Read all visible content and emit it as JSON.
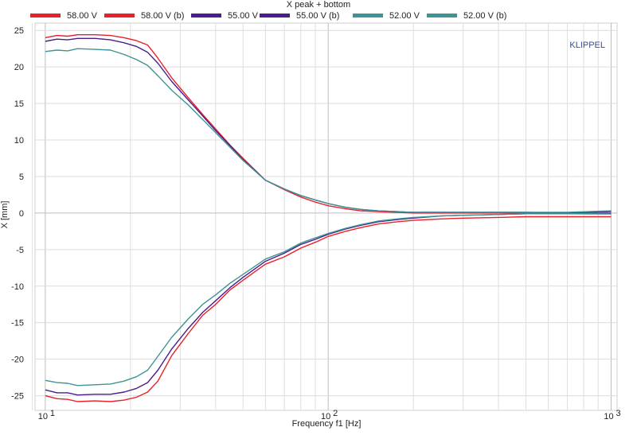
{
  "chart_data": {
    "type": "line",
    "title": "X  peak + bottom",
    "xlabel": "Frequency f1  [Hz]",
    "ylabel": "X  [mm]",
    "watermark": "KLIPPEL",
    "x_scale": "log",
    "xlim": [
      9.2,
      1050
    ],
    "ylim": [
      -27,
      26
    ],
    "grid": true,
    "legend_position": "top",
    "y_ticks": [
      "25",
      "20",
      "15",
      "10",
      "5",
      "0",
      "-5",
      "-10",
      "-15",
      "-20",
      "-25"
    ],
    "x_ticks": [
      {
        "value": 10,
        "base": "10",
        "exp": "1"
      },
      {
        "value": 100,
        "base": "10",
        "exp": "2"
      },
      {
        "value": 1000,
        "base": "10",
        "exp": "3"
      }
    ],
    "series": [
      {
        "name": "58.00 V",
        "color": "#e8202a",
        "x": [
          10,
          11,
          12,
          13,
          15,
          17,
          19,
          21,
          23,
          25,
          28,
          32,
          36,
          40,
          45,
          50,
          60,
          70,
          80,
          90,
          100,
          115,
          130,
          150,
          175,
          200,
          250,
          300,
          400,
          500,
          700,
          1000
        ],
        "y": [
          24.0,
          24.3,
          24.2,
          24.4,
          24.4,
          24.3,
          24.0,
          23.6,
          23.0,
          21.2,
          18.5,
          15.8,
          13.5,
          11.5,
          9.3,
          7.5,
          4.5,
          3.2,
          2.2,
          1.5,
          1.0,
          0.6,
          0.3,
          0.2,
          0.1,
          0.0,
          0.0,
          0.0,
          0.0,
          0.0,
          0.0,
          0.0
        ]
      },
      {
        "name": "58.00 V (b)",
        "color": "#e8202a",
        "x": [
          10,
          11,
          12,
          13,
          15,
          17,
          19,
          21,
          23,
          25,
          28,
          32,
          36,
          40,
          45,
          50,
          60,
          70,
          80,
          90,
          100,
          115,
          130,
          150,
          175,
          200,
          250,
          300,
          400,
          500,
          700,
          1000
        ],
        "y": [
          -25.0,
          -25.4,
          -25.5,
          -25.8,
          -25.7,
          -25.8,
          -25.6,
          -25.2,
          -24.5,
          -23.0,
          -19.5,
          -16.5,
          -14.0,
          -12.5,
          -10.5,
          -9.2,
          -7.0,
          -6.0,
          -4.8,
          -4.0,
          -3.2,
          -2.5,
          -2.0,
          -1.5,
          -1.2,
          -1.0,
          -0.8,
          -0.7,
          -0.6,
          -0.5,
          -0.5,
          -0.5
        ]
      },
      {
        "name": "55.00 V",
        "color": "#4a1c8c",
        "x": [
          10,
          11,
          12,
          13,
          15,
          17,
          19,
          21,
          23,
          25,
          28,
          32,
          36,
          40,
          45,
          50,
          60,
          70,
          80,
          90,
          100,
          115,
          130,
          150,
          175,
          200,
          250,
          300,
          400,
          500,
          700,
          1000
        ],
        "y": [
          23.5,
          23.8,
          23.7,
          23.9,
          23.9,
          23.7,
          23.3,
          22.8,
          22.0,
          20.5,
          18.0,
          15.5,
          13.3,
          11.3,
          9.2,
          7.3,
          4.5,
          3.3,
          2.4,
          1.8,
          1.3,
          0.8,
          0.5,
          0.3,
          0.2,
          0.1,
          0.1,
          0.1,
          0.1,
          0.1,
          0.0,
          0.2
        ]
      },
      {
        "name": "55.00 V (b)",
        "color": "#4a1c8c",
        "x": [
          10,
          11,
          12,
          13,
          15,
          17,
          19,
          21,
          23,
          25,
          28,
          32,
          36,
          40,
          45,
          50,
          60,
          70,
          80,
          90,
          100,
          115,
          130,
          150,
          175,
          200,
          250,
          300,
          400,
          500,
          700,
          1000
        ],
        "y": [
          -24.2,
          -24.6,
          -24.6,
          -24.9,
          -24.8,
          -24.8,
          -24.5,
          -24.0,
          -23.2,
          -21.5,
          -18.6,
          -15.8,
          -13.6,
          -12.0,
          -10.2,
          -8.8,
          -6.6,
          -5.5,
          -4.3,
          -3.6,
          -2.9,
          -2.2,
          -1.7,
          -1.2,
          -0.9,
          -0.7,
          -0.4,
          -0.3,
          -0.2,
          -0.1,
          -0.1,
          -0.1
        ]
      },
      {
        "name": "52.00 V",
        "color": "#3e9494",
        "x": [
          10,
          11,
          12,
          13,
          15,
          17,
          19,
          21,
          23,
          25,
          28,
          32,
          36,
          40,
          45,
          50,
          60,
          70,
          80,
          90,
          100,
          115,
          130,
          150,
          175,
          200,
          250,
          300,
          400,
          500,
          700,
          1000
        ],
        "y": [
          22.1,
          22.3,
          22.2,
          22.5,
          22.4,
          22.3,
          21.7,
          21.0,
          20.2,
          18.8,
          16.8,
          14.8,
          12.8,
          11.0,
          9.0,
          7.2,
          4.5,
          3.3,
          2.4,
          1.8,
          1.3,
          0.8,
          0.5,
          0.3,
          0.2,
          0.1,
          0.1,
          0.1,
          0.1,
          0.1,
          0.1,
          0.3
        ]
      },
      {
        "name": "52.00 V (b)",
        "color": "#3e9494",
        "x": [
          10,
          11,
          12,
          13,
          15,
          17,
          19,
          21,
          23,
          25,
          28,
          32,
          36,
          40,
          45,
          50,
          60,
          70,
          80,
          90,
          100,
          115,
          130,
          150,
          175,
          200,
          250,
          300,
          400,
          500,
          700,
          1000
        ],
        "y": [
          -22.9,
          -23.2,
          -23.3,
          -23.6,
          -23.5,
          -23.4,
          -23.0,
          -22.4,
          -21.5,
          -19.6,
          -17.0,
          -14.5,
          -12.5,
          -11.2,
          -9.6,
          -8.4,
          -6.3,
          -5.3,
          -4.1,
          -3.4,
          -2.8,
          -2.1,
          -1.6,
          -1.1,
          -0.8,
          -0.6,
          -0.4,
          -0.3,
          -0.2,
          -0.1,
          -0.1,
          0.0
        ]
      }
    ]
  }
}
